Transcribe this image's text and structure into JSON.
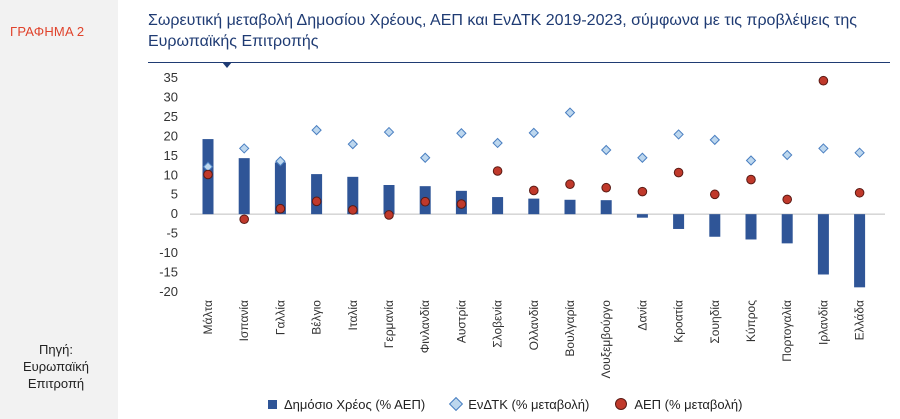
{
  "chart_label": "ΓΡΑΦΗΜΑ 2",
  "source_lines": [
    "Πηγή:",
    "Ευρωπαϊκή",
    "Επιτροπή"
  ],
  "colors": {
    "debt_bar": "#2f5597",
    "etdk_marker": "#bdd7ee",
    "etdk_border": "#4a7fc1",
    "gdp_marker": "#c0392b",
    "title": "#1f3b73",
    "label": "#e0432c"
  },
  "chart_data": {
    "type": "bar",
    "title": "Σωρευτική μεταβολή Δημοσίου Χρέους, ΑΕΠ και ΕνΔΤΚ 2019-2023, σύμφωνα με τις προβλέψεις της Ευρωπαϊκής Επιτροπής",
    "xlabel": "",
    "ylabel": "",
    "ylim": [
      -20,
      35
    ],
    "yticks": [
      35,
      30,
      25,
      20,
      15,
      10,
      5,
      0,
      -5,
      -10,
      -15,
      -20
    ],
    "grid": false,
    "legend_position": "bottom",
    "categories": [
      "Μάλτα",
      "Ισπανία",
      "Γαλλία",
      "Βέλγιο",
      "Ιταλία",
      "Γερμανία",
      "Φινλανδία",
      "Αυστρία",
      "Σλοβενία",
      "Ολλανδία",
      "Βουλγαρία",
      "Λουξεμβούργο",
      "Δανία",
      "Κροατία",
      "Σουηδία",
      "Κύπρος",
      "Πορτογαλία",
      "Ιρλανδία",
      "Ελλάδα"
    ],
    "series": [
      {
        "name": "Δημόσιο Χρέος (% ΑΕΠ)",
        "kind": "bar",
        "values": [
          19.3,
          14.4,
          13.3,
          10.3,
          9.6,
          7.5,
          7.2,
          6.0,
          4.4,
          4.0,
          3.7,
          3.6,
          -0.9,
          -3.8,
          -5.8,
          -6.5,
          -7.5,
          -15.5,
          -18.8
        ]
      },
      {
        "name": "ΕνΔΤΚ (% μεταβολή)",
        "kind": "diamond",
        "values": [
          12.2,
          16.9,
          13.6,
          21.6,
          18.0,
          21.1,
          14.5,
          20.8,
          18.3,
          20.9,
          26.1,
          16.5,
          14.5,
          20.5,
          19.1,
          13.8,
          15.2,
          16.9,
          15.8
        ]
      },
      {
        "name": "ΑΕΠ (% μεταβολή)",
        "kind": "dot",
        "values": [
          10.2,
          -1.3,
          1.4,
          3.3,
          1.1,
          -0.2,
          3.2,
          2.6,
          11.1,
          6.1,
          7.7,
          6.8,
          5.8,
          10.7,
          5.1,
          8.9,
          3.8,
          34.3,
          5.5
        ]
      }
    ]
  }
}
